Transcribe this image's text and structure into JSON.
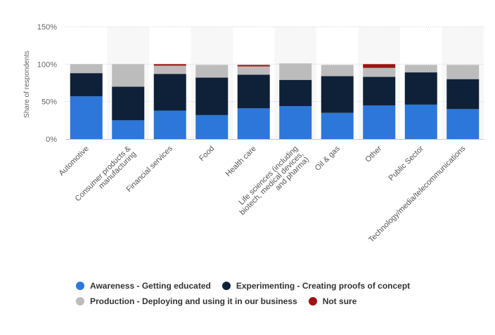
{
  "chart_data": {
    "type": "bar",
    "stacked": true,
    "ylabel": "Share of respondents",
    "ylim": [
      0,
      150
    ],
    "yticks": [
      0,
      50,
      100,
      150
    ],
    "ytick_labels": [
      "0%",
      "50%",
      "100%",
      "150%"
    ],
    "grid": true,
    "legend_position": "bottom",
    "categories": [
      {
        "lines": [
          "Automotive"
        ]
      },
      {
        "lines": [
          "Consumer products &",
          "manufacturing"
        ]
      },
      {
        "lines": [
          "Financial services"
        ]
      },
      {
        "lines": [
          "Food"
        ]
      },
      {
        "lines": [
          "Health care"
        ]
      },
      {
        "lines": [
          "Life sciences (including",
          "biotech, medical devices,",
          "and pharma)"
        ]
      },
      {
        "lines": [
          "Oil & gas"
        ]
      },
      {
        "lines": [
          "Other"
        ]
      },
      {
        "lines": [
          "Public Sector"
        ]
      },
      {
        "lines": [
          "Technology/media/telecommunications"
        ]
      }
    ],
    "series": [
      {
        "name": "Awareness - Getting educated",
        "color": "#2c77d9",
        "values": [
          57,
          25,
          38,
          32,
          41,
          44,
          35,
          45,
          46,
          40
        ]
      },
      {
        "name": "Experimenting - Creating proofs of concept",
        "color": "#0f2138",
        "values": [
          31,
          45,
          49,
          50,
          45,
          35,
          49,
          38,
          43,
          40
        ]
      },
      {
        "name": "Production - Deploying and using it in our business",
        "color": "#bcbcbc",
        "values": [
          12,
          30,
          11,
          17,
          11,
          22,
          15,
          12,
          10,
          19
        ]
      },
      {
        "name": "Not sure",
        "color": "#a01111",
        "values": [
          0,
          0,
          2,
          0,
          2,
          0,
          0,
          5,
          0,
          0
        ]
      }
    ]
  }
}
